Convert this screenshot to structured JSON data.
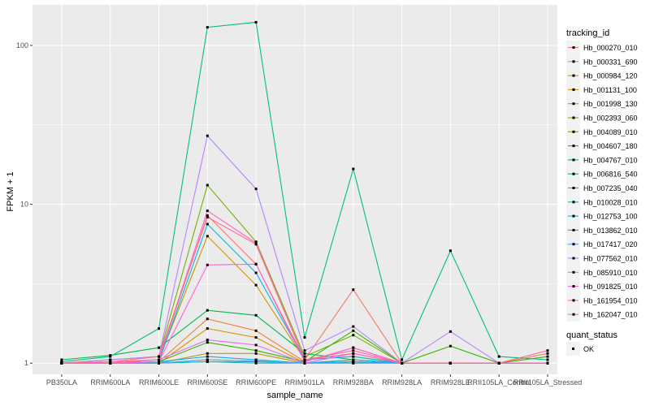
{
  "chart_data": {
    "type": "line",
    "y_scale": "log10",
    "xlabel": "sample_name",
    "ylabel": "FPKM + 1",
    "ylim": [
      0.85,
      180
    ],
    "y_ticks": [
      1,
      10,
      100
    ],
    "y_tick_labels": [
      "1",
      "10",
      "100"
    ],
    "grid": true,
    "legend_position": "right",
    "legend_title": "tracking_id",
    "categories": [
      "PB350LA",
      "RRIM600LA",
      "RRIM600LE",
      "RRIM600SE",
      "RRIM600PE",
      "RRIM901LA",
      "RRIM928BA",
      "RRIM928LA",
      "RRIM928LE",
      "RRII105LA_Control",
      "RRII105LA_Stressed"
    ],
    "category_labels": [
      "PB350LA",
      "RRIM600LA",
      "RRIM600LE",
      "RRIM600SE",
      "RRIM600PE",
      "RRIM901LA",
      "RRIM928BA",
      "RRIM928LA",
      "RRIM928LE",
      "RRII105LA_Control",
      "RRII105LA_Stressed"
    ],
    "series": [
      {
        "name": "Hb_000270_010",
        "color": "#F8766D",
        "values": [
          1.0,
          1.02,
          1.05,
          8.5,
          4.2,
          1.05,
          2.9,
          1.0,
          1.0,
          1.0,
          1.15
        ]
      },
      {
        "name": "Hb_000331_690",
        "color": "#EC8239",
        "values": [
          1.0,
          1.0,
          1.02,
          1.9,
          1.6,
          1.02,
          1.25,
          1.0,
          1.0,
          1.0,
          1.0
        ]
      },
      {
        "name": "Hb_000984_120",
        "color": "#DB8E00",
        "values": [
          1.0,
          1.0,
          1.0,
          1.65,
          1.45,
          1.0,
          1.05,
          1.0,
          1.0,
          1.0,
          1.0
        ]
      },
      {
        "name": "Hb_001131_100",
        "color": "#C79800",
        "values": [
          1.0,
          1.0,
          1.05,
          6.3,
          3.1,
          1.05,
          1.1,
          1.0,
          1.0,
          1.0,
          1.0
        ]
      },
      {
        "name": "Hb_001998_130",
        "color": "#AFA100",
        "values": [
          1.0,
          1.0,
          1.0,
          1.15,
          1.15,
          1.0,
          1.0,
          1.0,
          1.0,
          1.0,
          1.0
        ]
      },
      {
        "name": "Hb_002393_060",
        "color": "#93AA00",
        "values": [
          1.0,
          1.0,
          1.0,
          1.05,
          1.03,
          1.0,
          1.02,
          1.0,
          1.0,
          1.0,
          1.0
        ]
      },
      {
        "name": "Hb_004089_010",
        "color": "#72B000",
        "values": [
          1.0,
          1.05,
          1.1,
          13.2,
          5.8,
          1.1,
          1.5,
          1.0,
          1.0,
          1.0,
          1.0
        ]
      },
      {
        "name": "Hb_004607_180",
        "color": "#39B600",
        "values": [
          1.0,
          1.0,
          1.02,
          1.35,
          1.2,
          1.02,
          1.6,
          1.0,
          1.28,
          1.0,
          1.1
        ]
      },
      {
        "name": "Hb_004767_010",
        "color": "#00BB4E",
        "values": [
          1.05,
          1.12,
          1.25,
          2.15,
          2.0,
          1.15,
          1.05,
          1.0,
          1.0,
          1.0,
          1.0
        ]
      },
      {
        "name": "Hb_006816_540",
        "color": "#00BF7D",
        "values": [
          1.02,
          1.1,
          1.65,
          130,
          140,
          1.45,
          16.7,
          1.05,
          5.1,
          1.1,
          1.05
        ]
      },
      {
        "name": "Hb_007235_040",
        "color": "#00C1A3",
        "values": [
          1.0,
          1.0,
          1.0,
          1.02,
          1.02,
          1.0,
          1.02,
          1.0,
          1.0,
          1.0,
          1.0
        ]
      },
      {
        "name": "Hb_010028_010",
        "color": "#00BFC4",
        "values": [
          1.0,
          1.0,
          1.0,
          1.02,
          1.0,
          1.0,
          1.05,
          1.0,
          1.0,
          1.0,
          1.0
        ]
      },
      {
        "name": "Hb_012753_100",
        "color": "#00B8E5",
        "values": [
          1.0,
          1.0,
          1.02,
          7.5,
          3.7,
          1.05,
          1.1,
          1.0,
          1.0,
          1.0,
          1.0
        ]
      },
      {
        "name": "Hb_013862_010",
        "color": "#00ABFD",
        "values": [
          1.0,
          1.0,
          1.02,
          1.1,
          1.05,
          1.0,
          1.02,
          1.0,
          1.0,
          1.0,
          1.0
        ]
      },
      {
        "name": "Hb_017417_020",
        "color": "#619CFF",
        "values": [
          1.0,
          1.0,
          1.0,
          1.05,
          1.03,
          1.0,
          1.0,
          1.0,
          1.0,
          1.0,
          1.0
        ]
      },
      {
        "name": "Hb_077562_010",
        "color": "#B983FF",
        "values": [
          1.0,
          1.05,
          1.1,
          27,
          12.5,
          1.2,
          1.7,
          1.0,
          1.58,
          1.0,
          1.0
        ]
      },
      {
        "name": "Hb_085910_010",
        "color": "#E76BF3",
        "values": [
          1.0,
          1.0,
          1.05,
          1.4,
          1.3,
          1.0,
          1.15,
          1.0,
          1.0,
          1.0,
          1.0
        ]
      },
      {
        "name": "Hb_091825_010",
        "color": "#FA62DB",
        "values": [
          1.0,
          1.0,
          1.02,
          4.15,
          4.2,
          1.02,
          1.25,
          1.0,
          1.0,
          1.0,
          1.0
        ]
      },
      {
        "name": "Hb_161954_010",
        "color": "#FF63B6",
        "values": [
          1.0,
          1.0,
          1.05,
          9.1,
          5.7,
          1.05,
          1.15,
          1.0,
          1.0,
          1.0,
          1.0
        ]
      },
      {
        "name": "Hb_162047_010",
        "color": "#FF6C90",
        "values": [
          1.0,
          1.02,
          1.1,
          8.3,
          5.6,
          1.05,
          1.2,
          1.0,
          1.0,
          1.0,
          1.2
        ]
      }
    ],
    "legend2_title": "quant_status",
    "legend2_items": [
      "OK"
    ]
  }
}
